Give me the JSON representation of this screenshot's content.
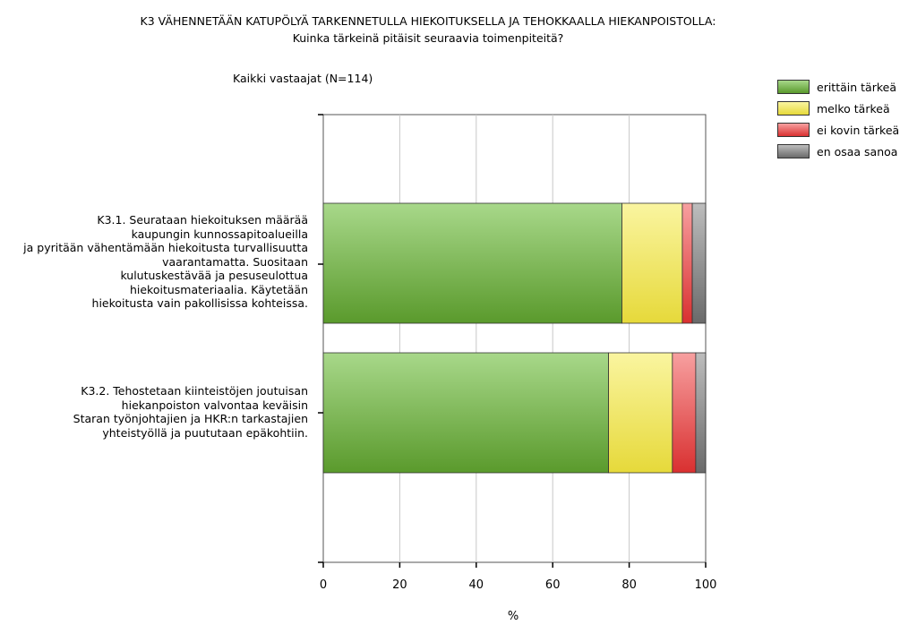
{
  "chart_data": {
    "type": "bar",
    "orientation": "horizontal",
    "stacked": true,
    "title_lines": [
      "K3 VÄHENNETÄÄN KATUPÖLYÄ TARKENNETULLA HIEKOITUKSELLA JA TEHOKKAALLA HIEKANPOISTOLLA:",
      "Kuinka tärkeinä pitäisit seuraavia toimenpiteitä?"
    ],
    "subset_label": "Kaikki vastaajat (N=114)",
    "categories": [
      "K3.1. Seurataan hiekoituksen määrää\nkaupungin kunnossapitoalueilla\nja pyritään vähentämään hiekoitusta turvallisuutta\nvaarantamatta. Suositaan\nkulutuskestävää ja pesuseulottua\nhiekoitusmateriaalia. Käytetään\nhiekoitusta vain pakollisissa kohteissa.",
      "K3.2. Tehostetaan kiinteistöjen joutuisan\nhiekanpoiston valvontaa keväisin\nStaran työnjohtajien ja HKR:n tarkastajien\nyhteistyöllä ja puututaan epäkohtiin."
    ],
    "series": [
      {
        "name": "erittäin tärkeä",
        "color": "#7dc04d",
        "values": [
          78.1,
          74.6
        ]
      },
      {
        "name": "melko tärkeä",
        "color": "#f0ea60",
        "values": [
          15.8,
          16.7
        ]
      },
      {
        "name": "ei kovin tärkeä",
        "color": "#ee5a5a",
        "values": [
          2.6,
          6.1
        ]
      },
      {
        "name": "en osaa sanoa",
        "color": "#8a8a8a",
        "values": [
          3.5,
          2.6
        ]
      }
    ],
    "xlim": [
      0,
      100
    ],
    "xticks": [
      0,
      20,
      40,
      60,
      80,
      100
    ],
    "xlabel": "%",
    "grid": true,
    "legend_position": "top-right"
  }
}
